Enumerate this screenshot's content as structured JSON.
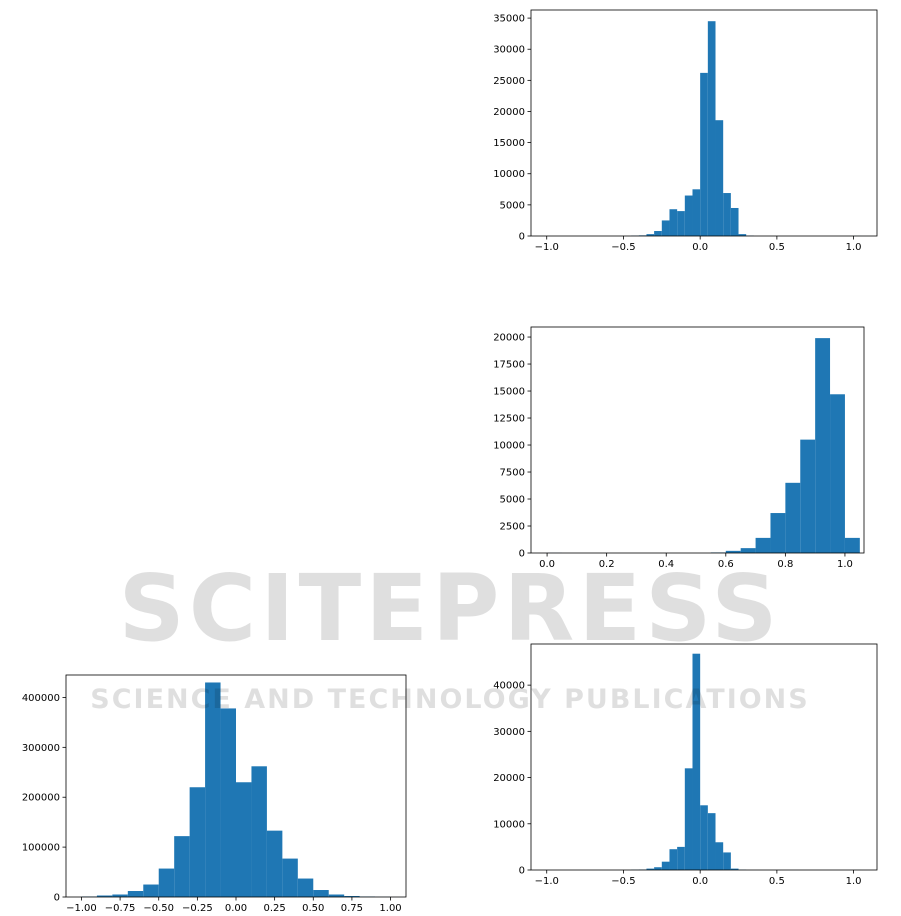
{
  "watermark": {
    "title": "SCITEPRESS",
    "subtitle": "SCIENCE AND TECHNOLOGY PUBLICATIONS"
  },
  "chart_data": [
    {
      "type": "histogram",
      "color": "#1f77b4",
      "bins": [
        -1.0,
        -0.95,
        -0.9,
        -0.85,
        -0.8,
        -0.75,
        -0.7,
        -0.65,
        -0.6,
        -0.55,
        -0.5,
        -0.45,
        -0.4,
        -0.35,
        -0.3,
        -0.25,
        -0.2,
        -0.15,
        -0.1,
        -0.05,
        0.0,
        0.05,
        0.1,
        0.15,
        0.2,
        0.25,
        0.3,
        0.35,
        0.4,
        0.45,
        0.5,
        0.55,
        0.6,
        0.65,
        0.7,
        0.75,
        0.8,
        0.85,
        0.9,
        0.95,
        1.0,
        1.05
      ],
      "values": [
        0,
        0,
        0,
        0,
        0,
        0,
        0,
        0,
        0,
        0,
        0,
        50,
        100,
        300,
        800,
        2500,
        4300,
        4000,
        6500,
        7500,
        26200,
        34500,
        18600,
        6900,
        4500,
        300,
        50,
        0,
        0,
        0,
        0,
        0,
        0,
        0,
        0,
        0,
        0,
        0,
        0,
        0,
        10
      ],
      "xlim": [
        -1.1025,
        1.1525
      ],
      "ylim": [
        0,
        36300
      ],
      "xticks": [
        {
          "value": -1.0,
          "label": "−1.0"
        },
        {
          "value": -0.5,
          "label": "−0.5"
        },
        {
          "value": 0.0,
          "label": "0.0"
        },
        0.5,
        {
          "value": 1.0,
          "label": "1.0"
        }
      ],
      "yticks": [
        0,
        5000,
        10000,
        15000,
        20000,
        25000,
        30000,
        35000
      ]
    },
    {
      "type": "histogram",
      "color": "#1f77b4",
      "bins": [
        0.0,
        0.05,
        0.1,
        0.15,
        0.2,
        0.25,
        0.3,
        0.35,
        0.4,
        0.45,
        0.5,
        0.55,
        0.6,
        0.65,
        0.7,
        0.75,
        0.8,
        0.85,
        0.9,
        0.95,
        1.0,
        1.05
      ],
      "values": [
        10,
        0,
        0,
        0,
        0,
        0,
        0,
        0,
        0,
        0,
        0,
        50,
        200,
        450,
        1400,
        3700,
        6500,
        10500,
        19900,
        14700,
        1400
      ],
      "xlim": [
        -0.054,
        1.064
      ],
      "ylim": [
        0,
        20930
      ],
      "xticks": [
        {
          "value": 0.0,
          "label": "0.0"
        },
        0.2,
        0.4,
        0.6,
        0.8,
        {
          "value": 1.0,
          "label": "1.0"
        }
      ],
      "yticks": [
        0,
        2500,
        5000,
        7500,
        10000,
        12500,
        15000,
        17500,
        20000
      ]
    },
    {
      "type": "histogram",
      "color": "#1f77b4",
      "bins": [
        -1.0,
        -0.9,
        -0.8,
        -0.7,
        -0.6,
        -0.5,
        -0.4,
        -0.3,
        -0.2,
        -0.1,
        0.0,
        0.1,
        0.2,
        0.3,
        0.4,
        0.5,
        0.6,
        0.7,
        0.8,
        0.9,
        1.0
      ],
      "values": [
        1000,
        3000,
        5000,
        12000,
        25000,
        57000,
        122000,
        220000,
        430000,
        378000,
        230000,
        262000,
        133000,
        77000,
        37000,
        14000,
        5000,
        2000,
        1000,
        300
      ],
      "xlim": [
        -1.1,
        1.1
      ],
      "ylim": [
        0,
        445000
      ],
      "xticks": [
        {
          "value": -1.0,
          "label": "−1.00"
        },
        {
          "value": -0.75,
          "label": "−0.75"
        },
        {
          "value": -0.5,
          "label": "−0.50"
        },
        {
          "value": -0.25,
          "label": "−0.25"
        },
        {
          "value": 0.0,
          "label": "0.00"
        },
        0.25,
        {
          "value": 0.5,
          "label": "0.50"
        },
        0.75,
        {
          "value": 1.0,
          "label": "1.00"
        }
      ],
      "yticks": [
        0,
        100000,
        200000,
        300000,
        400000
      ]
    },
    {
      "type": "histogram",
      "color": "#1f77b4",
      "bins": [
        -1.0,
        -0.95,
        -0.9,
        -0.85,
        -0.8,
        -0.75,
        -0.7,
        -0.65,
        -0.6,
        -0.55,
        -0.5,
        -0.45,
        -0.4,
        -0.35,
        -0.3,
        -0.25,
        -0.2,
        -0.15,
        -0.1,
        -0.05,
        0.0,
        0.05,
        0.1,
        0.15,
        0.2,
        0.25,
        0.3,
        0.35,
        0.4,
        0.45,
        0.5,
        0.55,
        0.6,
        0.65,
        0.7,
        0.75,
        0.8,
        0.85,
        0.9,
        0.95,
        1.0,
        1.05
      ],
      "values": [
        0,
        0,
        0,
        0,
        0,
        0,
        0,
        0,
        0,
        0,
        0,
        50,
        100,
        300,
        600,
        1800,
        4500,
        5000,
        22000,
        46800,
        14000,
        12300,
        6000,
        3800,
        300,
        50,
        0,
        0,
        0,
        0,
        0,
        0,
        0,
        0,
        0,
        0,
        0,
        0,
        0,
        0,
        10
      ],
      "xlim": [
        -1.1025,
        1.1525
      ],
      "ylim": [
        0,
        48900
      ],
      "xticks": [
        {
          "value": -1.0,
          "label": "−1.0"
        },
        {
          "value": -0.5,
          "label": "−0.5"
        },
        {
          "value": 0.0,
          "label": "0.0"
        },
        0.5,
        {
          "value": 1.0,
          "label": "1.0"
        }
      ],
      "yticks": [
        0,
        10000,
        20000,
        30000,
        40000
      ]
    }
  ]
}
